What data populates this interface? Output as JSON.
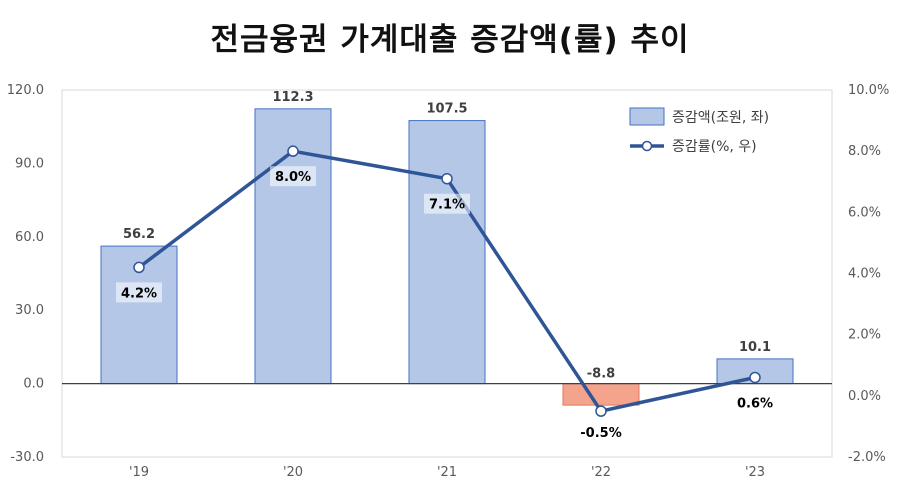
{
  "title": "전금융권 가계대출 증감액(률) 추이",
  "chart_data": {
    "type": "bar",
    "categories": [
      "'19",
      "'20",
      "'21",
      "'22",
      "'23"
    ],
    "series": [
      {
        "name": "증감액(조원, 좌)",
        "type": "bar",
        "axis": "left",
        "values": [
          56.2,
          112.3,
          107.5,
          -8.8,
          10.1
        ],
        "labels": [
          "56.2",
          "112.3",
          "107.5",
          "-8.8",
          "10.1"
        ],
        "color": "#b4c7e7",
        "negative_color": "#f4a48c"
      },
      {
        "name": "증감률(%, 우)",
        "type": "line",
        "axis": "right",
        "values": [
          4.2,
          8.0,
          7.1,
          -0.5,
          0.6
        ],
        "labels": [
          "4.2%",
          "8.0%",
          "7.1%",
          "-0.5%",
          "0.6%"
        ],
        "color": "#2f5597"
      }
    ],
    "y_left": {
      "min": -30,
      "max": 120,
      "step": 30,
      "tick_labels": [
        "-30.0",
        "0.0",
        "30.0",
        "60.0",
        "90.0",
        "120.0"
      ]
    },
    "y_right": {
      "min": -2,
      "max": 10,
      "step": 2,
      "tick_labels": [
        "-2.0%",
        "0.0%",
        "2.0%",
        "4.0%",
        "6.0%",
        "8.0%",
        "10.0%"
      ]
    },
    "grid": false,
    "legend_position": "top-right"
  }
}
